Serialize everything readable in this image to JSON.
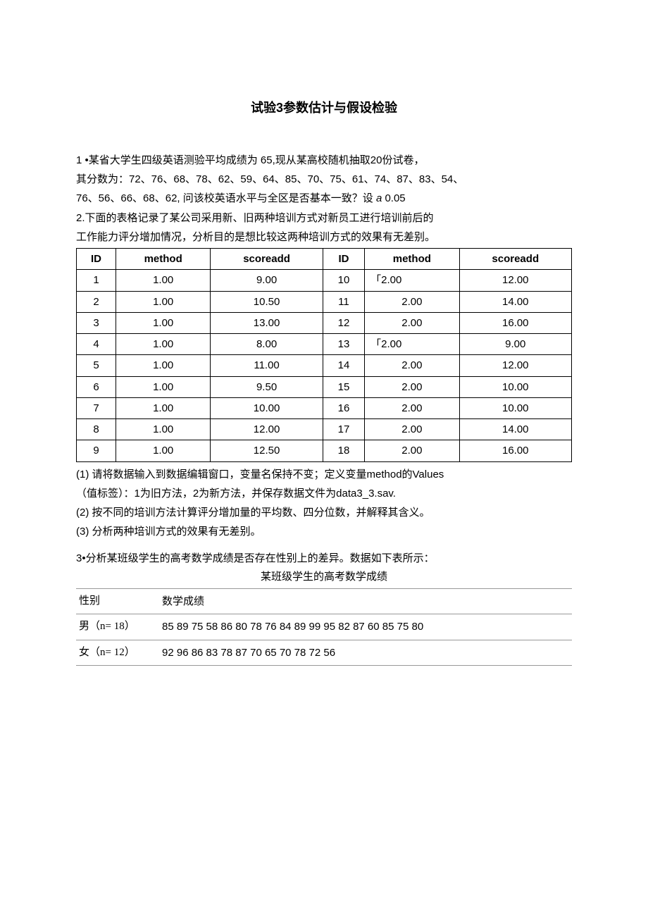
{
  "title": "试验3参数估计与假设检验",
  "q1": {
    "line1": "1 •某省大学生四级英语测验平均成绩为 65,现从某高校随机抽取20份试卷，",
    "line2": "其分数为：72、76、68、78、62、59、64、85、70、75、61、74、87、83、54、",
    "line3_a": "76、56、66、68、62, 问该校英语水平与全区是否基本一致？设 ",
    "line3_alpha": "a",
    "line3_b": " 0.05"
  },
  "q2": {
    "intro1": "2.下面的表格记录了某公司采用新、旧两种培训方式对新员工进行培训前后的",
    "intro2": "工作能力评分增加情况，分析目的是想比较这两种培训方式的效果有无差别。",
    "headers": [
      "ID",
      "method",
      "scoreadd",
      "ID",
      "method",
      "scoreadd"
    ],
    "rows": [
      {
        "id1": "1",
        "m1": "1.00",
        "s1": "9.00",
        "id2": "10",
        "m2": "「2.00",
        "s2": "12.00",
        "m2_left": true
      },
      {
        "id1": "2",
        "m1": "1.00",
        "s1": "10.50",
        "id2": "11",
        "m2": "2.00",
        "s2": "14.00"
      },
      {
        "id1": "3",
        "m1": "1.00",
        "s1": "13.00",
        "id2": "12",
        "m2": "2.00",
        "s2": "16.00"
      },
      {
        "id1": "4",
        "m1": "1.00",
        "s1": "8.00",
        "id2": "13",
        "m2": "「2.00",
        "s2": "9.00",
        "m2_left": true
      },
      {
        "id1": "5",
        "m1": "1.00",
        "s1": "11.00",
        "id2": "14",
        "m2": "2.00",
        "s2": "12.00"
      },
      {
        "id1": "6",
        "m1": "1.00",
        "s1": "9.50",
        "id2": "15",
        "m2": "2.00",
        "s2": "10.00"
      },
      {
        "id1": "7",
        "m1": "1.00",
        "s1": "10.00",
        "id2": "16",
        "m2": "2.00",
        "s2": "10.00"
      },
      {
        "id1": "8",
        "m1": "1.00",
        "s1": "12.00",
        "id2": "17",
        "m2": "2.00",
        "s2": "14.00"
      },
      {
        "id1": "9",
        "m1": "1.00",
        "s1": "12.50",
        "id2": "18",
        "m2": "2.00",
        "s2": "16.00"
      }
    ],
    "note1": "(1) 请将数据输入到数据编辑窗口，变量名保持不变；定义变量method的Values",
    "note2": "（值标签）：1为旧方法，2为新方法，并保存数据文件为data3_3.sav.",
    "note3": "(2) 按不同的培训方法计算评分增加量的平均数、四分位数，并解释其含义。",
    "note4": "(3) 分析两种培训方式的效果有无差别。"
  },
  "q3": {
    "intro": "3•分析某班级学生的高考数学成绩是否存在性别上的差异。数据如下表所示：",
    "subtitle": "某班级学生的高考数学成绩",
    "header_col1": "性别",
    "header_col2": "数学成绩",
    "row_male_label": "男（n= 18）",
    "row_male_scores": "85 89 75 58 86 80 78 76  84  89  99  95 82 87 60 85 75 80",
    "row_female_label": "女（n= 12）",
    "row_female_scores": "92 96 86 83 78 87 70 65  70  78  72  56"
  }
}
